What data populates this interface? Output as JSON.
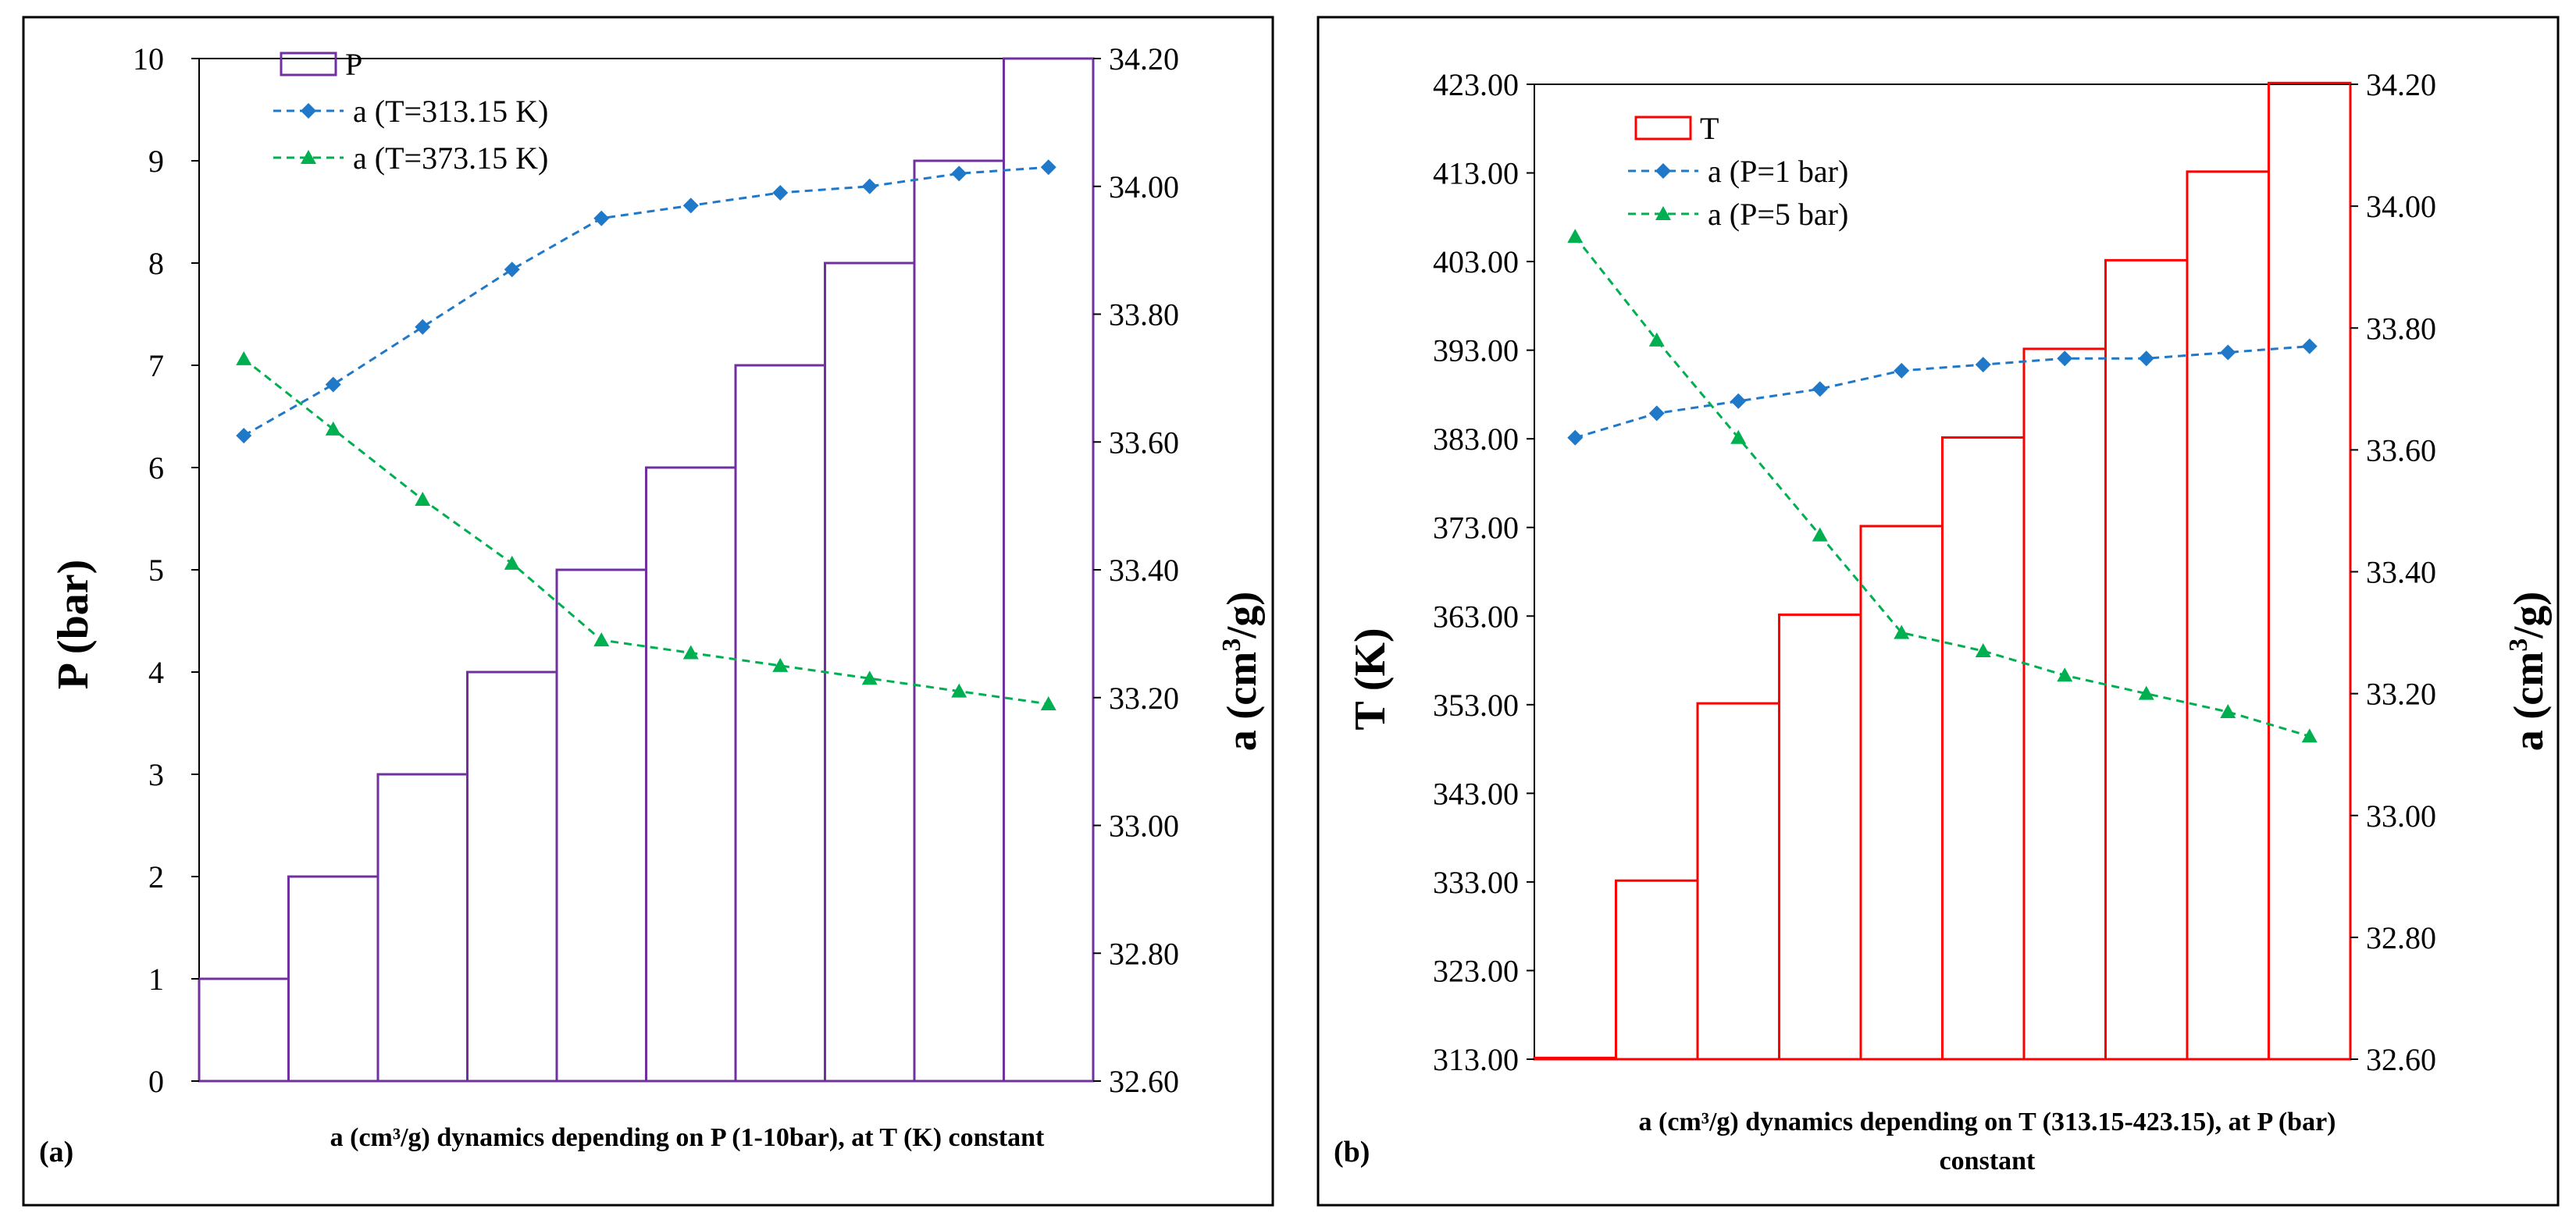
{
  "chart_data": [
    {
      "panel_label": "(a)",
      "type": "bar+line",
      "caption": "a (cm³/g) dynamics depending  on P (1-10bar), at T (K) constant",
      "bar_series": {
        "name": "P",
        "color": "#7030A0",
        "values": [
          1,
          2,
          3,
          4,
          5,
          6,
          7,
          8,
          9,
          10
        ]
      },
      "line_series": [
        {
          "name": "a (T=313.15 K)",
          "color": "#1F78C8",
          "marker": "diamond",
          "values": [
            33.61,
            33.69,
            33.78,
            33.87,
            33.95,
            33.97,
            33.99,
            34.0,
            34.02,
            34.03
          ]
        },
        {
          "name": "a (T=373.15 K)",
          "color": "#00B050",
          "marker": "triangle",
          "values": [
            33.73,
            33.62,
            33.51,
            33.41,
            33.29,
            33.27,
            33.25,
            33.23,
            33.21,
            33.19
          ]
        }
      ],
      "y_left": {
        "label_main": "P",
        "label_unit": "(bar)",
        "ylim": [
          0,
          10
        ],
        "ticks": [
          "0",
          "1",
          "2",
          "3",
          "4",
          "5",
          "6",
          "7",
          "8",
          "9",
          "10"
        ]
      },
      "y_right": {
        "label_main": "a (cm",
        "label_sup": "3",
        "label_end": "/g)",
        "ylim": [
          32.6,
          34.2
        ],
        "ticks": [
          "32.60",
          "32.80",
          "33.00",
          "33.20",
          "33.40",
          "33.60",
          "33.80",
          "34.00",
          "34.20"
        ]
      }
    },
    {
      "panel_label": "(b)",
      "type": "bar+line",
      "caption_line1": "a (cm³/g) dynamics depending  on T  (313.15-423.15), at P (bar)",
      "caption_line2": "constant",
      "bar_series": {
        "name": "T",
        "color": "#FF0000",
        "values": [
          313.15,
          333.15,
          353.15,
          363.15,
          373.15,
          383.15,
          393.15,
          403.15,
          413.15,
          423.15
        ]
      },
      "line_series": [
        {
          "name": "a (P=1 bar)",
          "color": "#1F78C8",
          "marker": "diamond",
          "values": [
            33.62,
            33.66,
            33.68,
            33.7,
            33.73,
            33.74,
            33.75,
            33.75,
            33.76,
            33.77
          ]
        },
        {
          "name": "a (P=5 bar)",
          "color": "#00B050",
          "marker": "triangle",
          "values": [
            33.95,
            33.78,
            33.62,
            33.46,
            33.3,
            33.27,
            33.23,
            33.2,
            33.17,
            33.13
          ]
        }
      ],
      "y_left": {
        "label_main": "T",
        "label_unit": "(K)",
        "ylim": [
          313,
          423
        ],
        "ticks": [
          "313.00",
          "323.00",
          "333.00",
          "343.00",
          "353.00",
          "363.00",
          "373.00",
          "383.00",
          "393.00",
          "403.00",
          "413.00",
          "423.00"
        ]
      },
      "y_right": {
        "label_main": "a (cm",
        "label_sup": "3",
        "label_end": "/g)",
        "ylim": [
          32.6,
          34.2
        ],
        "ticks": [
          "32.60",
          "32.80",
          "33.00",
          "33.20",
          "33.40",
          "33.60",
          "33.80",
          "34.00",
          "34.20"
        ]
      }
    }
  ]
}
